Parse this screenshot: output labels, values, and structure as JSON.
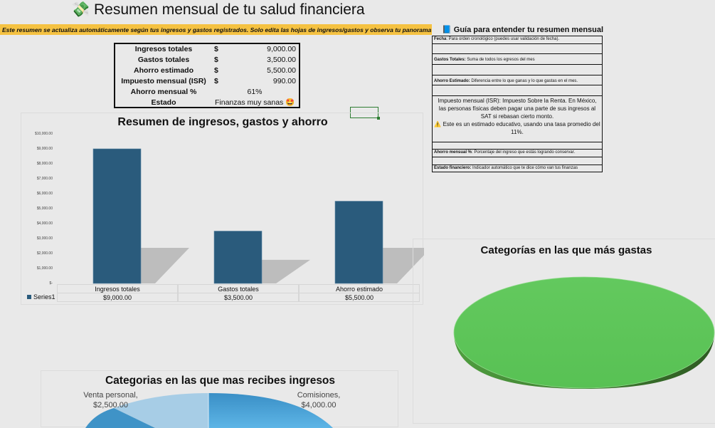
{
  "header": {
    "icon": "money-with-wings-icon",
    "title": "Resumen mensual de tu salud financiera"
  },
  "banner": "Este resumen se actualiza automáticamente según tus ingresos y gastos registrados. Solo edita las hojas de ingresos/gastos y observa tu panorama real.",
  "summary": {
    "rows": [
      {
        "label": "Ingresos totales",
        "currency": "$",
        "value": "9,000.00"
      },
      {
        "label": "Gastos totales",
        "currency": "$",
        "value": "3,500.00"
      },
      {
        "label": "Ahorro estimado",
        "currency": "$",
        "value": "5,500.00"
      },
      {
        "label": "Impuesto mensual (ISR)",
        "currency": "$",
        "value": "990.00"
      }
    ],
    "savings_label": "Ahorro mensual %",
    "savings_value": "61%",
    "status_label": "Estado",
    "status_value": "Finanzas muy sanas 🤩"
  },
  "guide": {
    "title": "Guía para entender tu resumen mensual",
    "fecha_term": "Fecha",
    "fecha_desc": ": Para orden cronológico (puedes usar validación de fecha).",
    "gastos_term": "Gastos Totales:",
    "gastos_desc": " Suma de todos los egresos del mes",
    "ahorro_term": "Ahorro Estimado:",
    "ahorro_desc": " Diferencia entre lo que ganas y lo que gastas en el mes.",
    "isr_text": "Impuesto mensual (ISR): Impuesto Sobre la Renta. En México, las personas físicas deben pagar una parte de sus ingresos al SAT si rebasan cierto monto.",
    "isr_note": "⚠️ Este es un estimado educativo, usando una tasa promedio del 11%.",
    "pct_term": "Ahorro mensual %",
    "pct_desc": ": Porcentaje del ingreso que estás logrando conservar.",
    "estado_term": "Estado financiero:",
    "estado_desc": " Indicador automático que te dice cómo van tus finanzas"
  },
  "chart_data": [
    {
      "type": "bar",
      "title": "Resumen de ingresos, gastos y ahorro",
      "categories": [
        "Ingresos totales",
        "Gastos totales",
        "Ahorro estimado"
      ],
      "series": [
        {
          "name": "Series1",
          "values": [
            9000,
            3500,
            5500
          ],
          "labels": [
            "$9,000.00",
            "$3,500.00",
            "$5,500.00"
          ]
        }
      ],
      "yticks": [
        "$-",
        "$1,000.00",
        "$2,000.00",
        "$3,000.00",
        "$4,000.00",
        "$5,000.00",
        "$6,000.00",
        "$7,000.00",
        "$8,000.00",
        "$9,000.00",
        "$10,000.00"
      ],
      "ylim": [
        0,
        10000
      ],
      "color": "#2a5b7c"
    },
    {
      "type": "pie",
      "title": "Categorías en las que más gastas",
      "color": "#5cc55a"
    },
    {
      "type": "pie",
      "title": "Categorias en las que mas recibes ingresos",
      "slices": [
        {
          "label": "Comisiones,",
          "value_label": "$4,000.00",
          "value": 4000
        },
        {
          "label": "Venta personal,",
          "value_label": "$2,500.00",
          "value": 2500
        }
      ]
    }
  ]
}
